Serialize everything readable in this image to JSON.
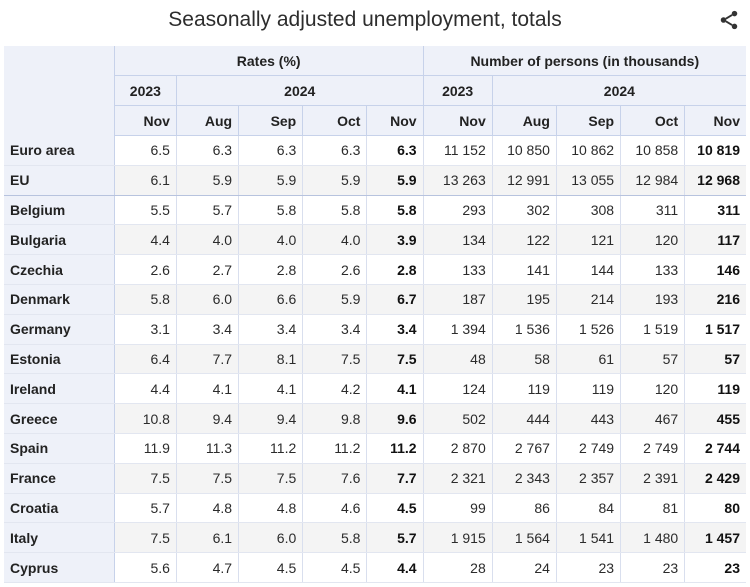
{
  "header": {
    "title": "Seasonally adjusted unemployment, totals",
    "share_icon": "share-icon"
  },
  "table": {
    "groups": [
      "Rates (%)",
      "Number of persons (in thousands)"
    ],
    "years": {
      "prev": "2023",
      "curr": "2024"
    },
    "months": [
      "Nov",
      "Aug",
      "Sep",
      "Oct",
      "Nov"
    ]
  },
  "chart_data": {
    "type": "table",
    "title": "Seasonally adjusted unemployment, totals",
    "columns": [
      "Rates (%) 2023 Nov",
      "Rates (%) 2024 Aug",
      "Rates (%) 2024 Sep",
      "Rates (%) 2024 Oct",
      "Rates (%) 2024 Nov",
      "Number of persons (in thousands) 2023 Nov",
      "Number of persons (in thousands) 2024 Aug",
      "Number of persons (in thousands) 2024 Sep",
      "Number of persons (in thousands) 2024 Oct",
      "Number of persons (in thousands) 2024 Nov"
    ],
    "rows": [
      {
        "name": "Euro area",
        "cells": [
          "6.5",
          "6.3",
          "6.3",
          "6.3",
          "6.3",
          "11 152",
          "10 850",
          "10 862",
          "10 858",
          "10 819"
        ]
      },
      {
        "name": "EU",
        "cells": [
          "6.1",
          "5.9",
          "5.9",
          "5.9",
          "5.9",
          "13 263",
          "12 991",
          "13 055",
          "12 984",
          "12 968"
        ]
      },
      {
        "name": "Belgium",
        "cells": [
          "5.5",
          "5.7",
          "5.8",
          "5.8",
          "5.8",
          "293",
          "302",
          "308",
          "311",
          "311"
        ]
      },
      {
        "name": "Bulgaria",
        "cells": [
          "4.4",
          "4.0",
          "4.0",
          "4.0",
          "3.9",
          "134",
          "122",
          "121",
          "120",
          "117"
        ]
      },
      {
        "name": "Czechia",
        "cells": [
          "2.6",
          "2.7",
          "2.8",
          "2.6",
          "2.8",
          "133",
          "141",
          "144",
          "133",
          "146"
        ]
      },
      {
        "name": "Denmark",
        "cells": [
          "5.8",
          "6.0",
          "6.6",
          "5.9",
          "6.7",
          "187",
          "195",
          "214",
          "193",
          "216"
        ]
      },
      {
        "name": "Germany",
        "cells": [
          "3.1",
          "3.4",
          "3.4",
          "3.4",
          "3.4",
          "1 394",
          "1 536",
          "1 526",
          "1 519",
          "1 517"
        ]
      },
      {
        "name": "Estonia",
        "cells": [
          "6.4",
          "7.7",
          "8.1",
          "7.5",
          "7.5",
          "48",
          "58",
          "61",
          "57",
          "57"
        ]
      },
      {
        "name": "Ireland",
        "cells": [
          "4.4",
          "4.1",
          "4.1",
          "4.2",
          "4.1",
          "124",
          "119",
          "119",
          "120",
          "119"
        ]
      },
      {
        "name": "Greece",
        "cells": [
          "10.8",
          "9.4",
          "9.4",
          "9.8",
          "9.6",
          "502",
          "444",
          "443",
          "467",
          "455"
        ]
      },
      {
        "name": "Spain",
        "cells": [
          "11.9",
          "11.3",
          "11.2",
          "11.2",
          "11.2",
          "2 870",
          "2 767",
          "2 749",
          "2 749",
          "2 744"
        ]
      },
      {
        "name": "France",
        "cells": [
          "7.5",
          "7.5",
          "7.5",
          "7.6",
          "7.7",
          "2 321",
          "2 343",
          "2 357",
          "2 391",
          "2 429"
        ]
      },
      {
        "name": "Croatia",
        "cells": [
          "5.7",
          "4.8",
          "4.8",
          "4.6",
          "4.5",
          "99",
          "86",
          "84",
          "81",
          "80"
        ]
      },
      {
        "name": "Italy",
        "cells": [
          "7.5",
          "6.1",
          "6.0",
          "5.8",
          "5.7",
          "1 915",
          "1 564",
          "1 541",
          "1 480",
          "1 457"
        ]
      },
      {
        "name": "Cyprus",
        "cells": [
          "5.6",
          "4.7",
          "4.5",
          "4.5",
          "4.4",
          "28",
          "24",
          "23",
          "23",
          "23"
        ]
      }
    ]
  }
}
